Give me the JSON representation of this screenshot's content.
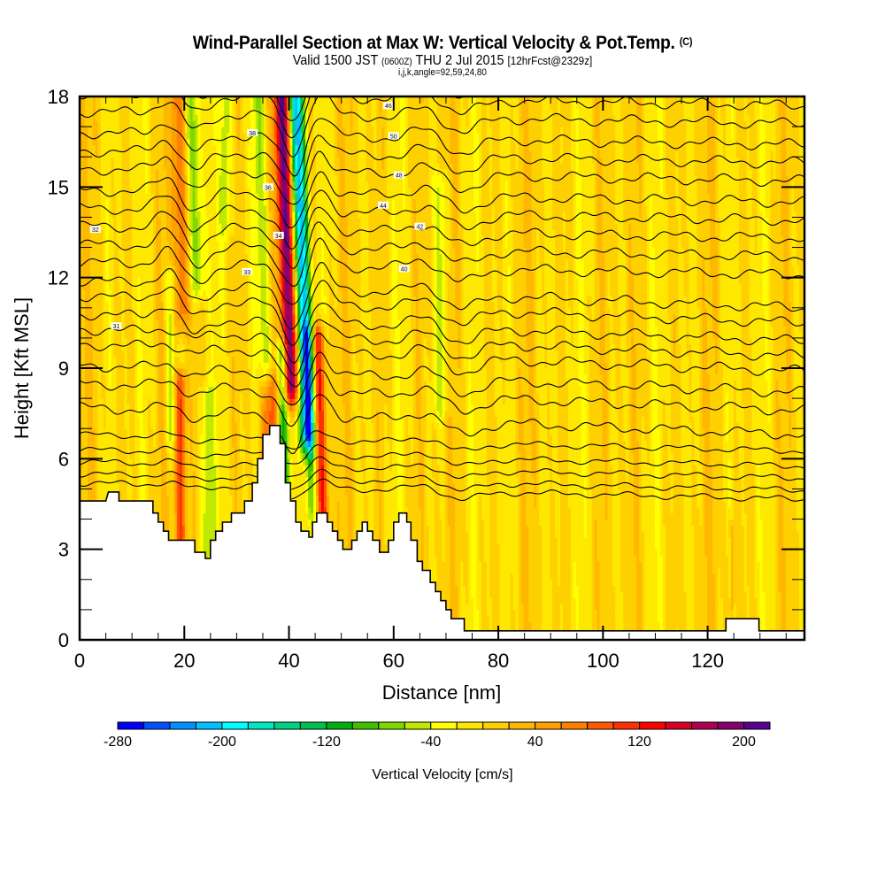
{
  "header": {
    "title": "Wind-Parallel Section at Max W: Vertical Velocity & Pot.Temp.",
    "copyright_mark": "(C)",
    "valid_prefix": "Valid 1500 JST",
    "valid_utc": "(0600Z)",
    "valid_date": "THU 2 Jul 2015",
    "forecast_info": "[12hrFcst@2329z]",
    "grid_info": "i,j,k,angle=92,59,24,80"
  },
  "chart_data": {
    "type": "heatmap",
    "title": "Wind-Parallel Section at Max W: Vertical Velocity & Pot.Temp.",
    "xlabel": "Distance [nm]",
    "ylabel": "Height [Kft MSL]",
    "xlim": [
      0,
      138.5
    ],
    "ylim": [
      0,
      18
    ],
    "x_ticks": [
      0,
      20,
      40,
      60,
      80,
      100,
      120
    ],
    "x_tick_labels": [
      "0",
      "20",
      "40",
      "60",
      "80",
      "100",
      "120"
    ],
    "x_minor_step": 5,
    "y_ticks": [
      0,
      3,
      6,
      9,
      12,
      15,
      18
    ],
    "y_tick_labels": [
      "0",
      "3",
      "6",
      "9",
      "12",
      "15",
      "18"
    ],
    "y_minor_step": 1,
    "colorbar": {
      "label": "Vertical Velocity [cm/s]",
      "min": -280,
      "max": 220,
      "step": 20,
      "tick_values": [
        -280,
        -200,
        -120,
        -40,
        40,
        120,
        200
      ],
      "tick_labels": [
        "-280",
        "-200",
        "-120",
        "-40",
        "40",
        "120",
        "200"
      ],
      "colors": [
        "#0000ff",
        "#0050ff",
        "#0090ff",
        "#00c0ff",
        "#00ffff",
        "#00e8c0",
        "#00d080",
        "#00c050",
        "#00b010",
        "#40c000",
        "#80d800",
        "#c0e800",
        "#ffff00",
        "#ffe800",
        "#ffd000",
        "#ffb800",
        "#ffa000",
        "#ff8000",
        "#ff5800",
        "#ff3000",
        "#ff0000",
        "#d80028",
        "#b00050",
        "#880070",
        "#580090"
      ]
    },
    "velocity_features": [
      {
        "x": 40.5,
        "w": 1.6,
        "ztop": 18,
        "zbot": 8.5,
        "value": 210,
        "tilt": -0.18
      },
      {
        "x": 43.5,
        "w": 1.4,
        "ztop": 18,
        "zbot": 7.0,
        "value": -230,
        "tilt": -0.2
      },
      {
        "x": 39.0,
        "w": 1.0,
        "ztop": 9.5,
        "zbot": 5.5,
        "value": -110,
        "tilt": -0.1
      },
      {
        "x": 46.5,
        "w": 1.2,
        "ztop": 10,
        "zbot": 4.0,
        "value": 130,
        "tilt": -0.15
      },
      {
        "x": 44.2,
        "w": 1.0,
        "ztop": 10,
        "zbot": 4.5,
        "value": -90,
        "tilt": -0.1
      },
      {
        "x": 35.5,
        "w": 1.5,
        "ztop": 18,
        "zbot": 9,
        "value": -60,
        "tilt": -0.15
      },
      {
        "x": 19.5,
        "w": 1.4,
        "ztop": 18,
        "zbot": 11,
        "value": 80,
        "tilt": -0.1
      },
      {
        "x": 22.5,
        "w": 1.4,
        "ztop": 18,
        "zbot": 12,
        "value": -80,
        "tilt": -0.15
      },
      {
        "x": 19.3,
        "w": 1.0,
        "ztop": 8.5,
        "zbot": 3.5,
        "value": 110,
        "tilt": 0
      },
      {
        "x": 17.3,
        "w": 0.8,
        "ztop": 12,
        "zbot": 7,
        "value": -60,
        "tilt": 0
      },
      {
        "x": 24.3,
        "w": 1.3,
        "ztop": 8,
        "zbot": 3.0,
        "value": -50,
        "tilt": 0
      },
      {
        "x": 36.5,
        "w": 1.6,
        "ztop": 8.5,
        "zbot": 6.0,
        "value": 70,
        "tilt": 0
      },
      {
        "x": 28.0,
        "w": 1.0,
        "ztop": 18,
        "zbot": 14,
        "value": -50,
        "tilt": 0
      },
      {
        "x": 69.0,
        "w": 1.3,
        "ztop": 15,
        "zbot": 8,
        "value": -45,
        "tilt": 0
      },
      {
        "x": 124.5,
        "w": 0.6,
        "ztop": 3.5,
        "zbot": 1.5,
        "value": 60,
        "tilt": 0
      },
      {
        "x": 124.2,
        "w": 0.3,
        "ztop": 3.0,
        "zbot": 1.8,
        "value": -40,
        "tilt": 0
      }
    ],
    "terrain_kft": [
      [
        0,
        4.6
      ],
      [
        2,
        4.6
      ],
      [
        5,
        4.6
      ],
      [
        5.5,
        4.9
      ],
      [
        7.5,
        4.9
      ],
      [
        7.5,
        4.6
      ],
      [
        14,
        4.6
      ],
      [
        14,
        4.2
      ],
      [
        15,
        4.2
      ],
      [
        15,
        3.9
      ],
      [
        16,
        3.9
      ],
      [
        16,
        3.6
      ],
      [
        17,
        3.6
      ],
      [
        17,
        3.3
      ],
      [
        19.8,
        3.3
      ],
      [
        19.8,
        3.3
      ],
      [
        22,
        3.3
      ],
      [
        22,
        2.9
      ],
      [
        24,
        2.9
      ],
      [
        24,
        2.7
      ],
      [
        25,
        2.7
      ],
      [
        25,
        3.3
      ],
      [
        26,
        3.3
      ],
      [
        26,
        3.6
      ],
      [
        27.3,
        3.6
      ],
      [
        27.3,
        3.9
      ],
      [
        29,
        3.9
      ],
      [
        29,
        4.2
      ],
      [
        31.5,
        4.2
      ],
      [
        31.5,
        4.6
      ],
      [
        33,
        4.6
      ],
      [
        33,
        5.2
      ],
      [
        34,
        5.2
      ],
      [
        34,
        6.0
      ],
      [
        35,
        6.0
      ],
      [
        35,
        6.8
      ],
      [
        36.3,
        6.8
      ],
      [
        36.3,
        7.1
      ],
      [
        38.3,
        7.1
      ],
      [
        38.3,
        6.5
      ],
      [
        39.3,
        6.5
      ],
      [
        39.3,
        5.2
      ],
      [
        40.3,
        5.2
      ],
      [
        40.3,
        4.6
      ],
      [
        41.3,
        4.6
      ],
      [
        41.3,
        3.9
      ],
      [
        42.3,
        3.9
      ],
      [
        42.3,
        3.6
      ],
      [
        43.8,
        3.6
      ],
      [
        43.8,
        3.4
      ],
      [
        44.5,
        3.4
      ],
      [
        44.5,
        3.9
      ],
      [
        45.3,
        3.9
      ],
      [
        45.3,
        4.2
      ],
      [
        47.3,
        4.2
      ],
      [
        47.3,
        3.9
      ],
      [
        48.3,
        3.9
      ],
      [
        48.3,
        3.6
      ],
      [
        49.3,
        3.6
      ],
      [
        49.3,
        3.3
      ],
      [
        50.3,
        3.3
      ],
      [
        50.3,
        3.0
      ],
      [
        52,
        3.0
      ],
      [
        52,
        3.3
      ],
      [
        53,
        3.3
      ],
      [
        53,
        3.6
      ],
      [
        54,
        3.6
      ],
      [
        54,
        3.9
      ],
      [
        55,
        3.9
      ],
      [
        55,
        3.6
      ],
      [
        56,
        3.6
      ],
      [
        56,
        3.3
      ],
      [
        57.3,
        3.3
      ],
      [
        57.3,
        2.9
      ],
      [
        59,
        2.9
      ],
      [
        59,
        3.3
      ],
      [
        60,
        3.3
      ],
      [
        60,
        3.9
      ],
      [
        61,
        3.9
      ],
      [
        61,
        4.2
      ],
      [
        62.5,
        4.2
      ],
      [
        62.5,
        3.9
      ],
      [
        63.3,
        3.9
      ],
      [
        63.3,
        3.3
      ],
      [
        64.5,
        3.3
      ],
      [
        64.5,
        2.6
      ],
      [
        65.5,
        2.6
      ],
      [
        65.5,
        2.3
      ],
      [
        67,
        2.3
      ],
      [
        67,
        1.9
      ],
      [
        68,
        1.9
      ],
      [
        68,
        1.6
      ],
      [
        69,
        1.6
      ],
      [
        69,
        1.3
      ],
      [
        70,
        1.3
      ],
      [
        70,
        1.0
      ],
      [
        71,
        1.0
      ],
      [
        71,
        0.7
      ],
      [
        73.5,
        0.7
      ],
      [
        73.5,
        0.3
      ],
      [
        123.5,
        0.3
      ],
      [
        123.5,
        0.7
      ],
      [
        129.8,
        0.7
      ],
      [
        129.8,
        0.3
      ],
      [
        138.5,
        0.3
      ]
    ],
    "theta_contours": {
      "field": "Potential Temperature",
      "count": 30,
      "base_levels_kft": [
        4.9,
        5.2,
        5.6,
        6.0,
        6.5,
        7.2,
        8.0,
        8.6,
        9.3,
        9.8,
        10.3,
        10.9,
        11.4,
        12.0,
        12.6,
        13.2,
        13.8,
        14.4,
        15.1,
        15.7,
        16.3,
        17.0,
        17.6,
        18.1
      ],
      "labels": [
        "46",
        "50",
        "48",
        "44",
        "42",
        "40",
        "38",
        "36",
        "34",
        "33",
        "32",
        "31"
      ]
    }
  }
}
